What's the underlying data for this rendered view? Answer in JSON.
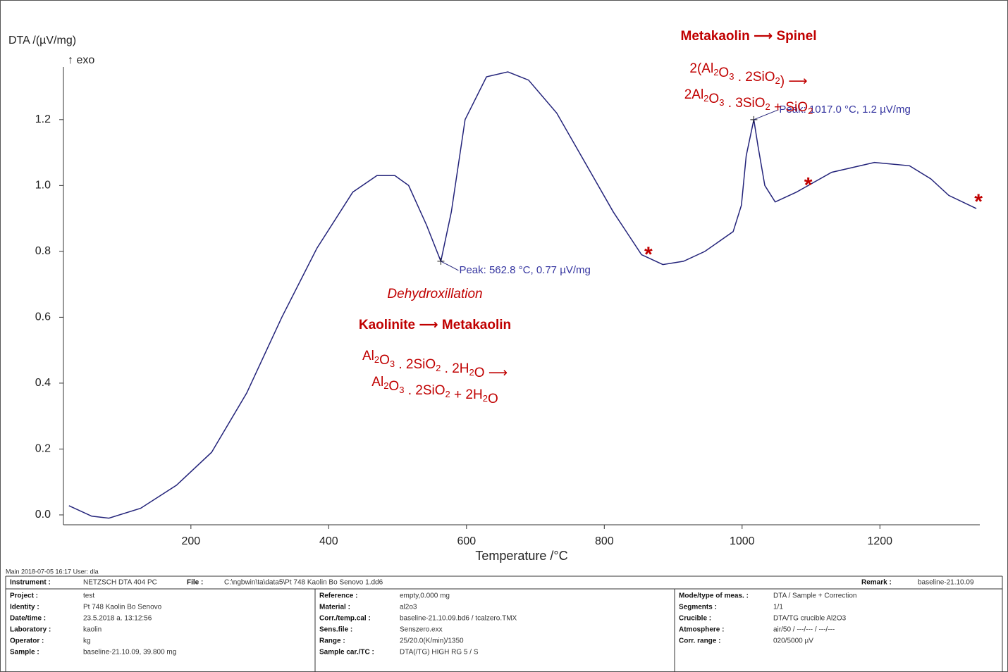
{
  "chart_data": {
    "type": "line",
    "y_label": "DTA /(µV/mg)",
    "y_sublabel": "↑ exo",
    "x_label": "Temperature /°C",
    "color": "#23237a",
    "x": [
      23,
      56,
      81,
      127,
      179,
      230,
      281,
      332,
      383,
      435,
      470,
      496,
      516,
      542,
      562.8,
      578,
      598,
      629,
      660,
      690,
      731,
      772,
      813,
      854,
      885,
      915,
      946,
      987,
      999,
      1006,
      1017,
      1023,
      1033,
      1048,
      1079,
      1130,
      1192,
      1243,
      1274,
      1300,
      1340
    ],
    "values": [
      0.028,
      -0.004,
      -0.01,
      0.02,
      0.09,
      0.19,
      0.37,
      0.6,
      0.81,
      0.98,
      1.03,
      1.03,
      1.0,
      0.88,
      0.77,
      0.92,
      1.2,
      1.33,
      1.345,
      1.32,
      1.22,
      1.07,
      0.92,
      0.79,
      0.76,
      0.77,
      0.8,
      0.86,
      0.94,
      1.09,
      1.2,
      1.12,
      1.0,
      0.95,
      0.98,
      1.04,
      1.07,
      1.06,
      1.02,
      0.97,
      0.93
    ],
    "xlim": [
      15,
      1345
    ],
    "ylim": [
      -0.03,
      1.36
    ],
    "xticks": [
      200,
      400,
      600,
      800,
      1000,
      1200
    ],
    "yticks": [
      {
        "value": 0,
        "label": "0.0"
      },
      {
        "value": 0.2,
        "label": "0.2"
      },
      {
        "value": 0.4,
        "label": "0.4"
      },
      {
        "value": 0.6,
        "label": "0.6"
      },
      {
        "value": 0.8,
        "label": "0.8"
      },
      {
        "value": 1.0,
        "label": "1.0"
      },
      {
        "value": 1.2,
        "label": "1.2"
      }
    ],
    "peaks": [
      {
        "x": 562.8,
        "y": 0.77,
        "label": "Peak: 562.8 °C, 0.77 µV/mg"
      },
      {
        "x": 1017.0,
        "y": 1.2,
        "label": "Peak: 1017.0 °C, 1.2 µV/mg"
      }
    ],
    "highlights": [
      {
        "x": 864,
        "y": 0.8,
        "label": "*"
      },
      {
        "x": 1096,
        "y": 1.01,
        "label": "*"
      },
      {
        "x": 1343,
        "y": 0.96,
        "label": "*"
      }
    ],
    "annotations": [
      {
        "text": "Metakaolin ⟶ Spinel",
        "style": "bold"
      },
      {
        "text": "2(Al2O3 . 2SiO2) ⟶",
        "style": "formula"
      },
      {
        "text": "2Al2O3 . 3SiO2 + SiO2",
        "style": "formula"
      },
      {
        "text": "Dehydroxillation",
        "style": "italic"
      },
      {
        "text": "Kaolinite ⟶ Metakaolin",
        "style": "bold"
      },
      {
        "text": "Al2O3 . 2SiO2 . 2H2O ⟶",
        "style": "formula"
      },
      {
        "text": "Al2O3 . 2SiO2 + 2H2O",
        "style": "formula"
      }
    ]
  },
  "footer": {
    "main": "Main   2018-07-05 16:17    User: dla",
    "header": [
      [
        "Instrument :",
        "NETZSCH DTA 404 PC"
      ],
      [
        "File :",
        "C:\\ngbwin\\ta\\data5\\Pt 748 Kaolin Bo Senovo 1.dd6"
      ],
      [
        "Remark :",
        "baseline-21.10.09"
      ]
    ],
    "columns": [
      [
        [
          "Project :",
          "test"
        ],
        [
          "Identity :",
          "Pt 748 Kaolin Bo Senovo"
        ],
        [
          "Date/time :",
          "23.5.2018 a. 13:12:56"
        ],
        [
          "Laboratory :",
          "kaolin"
        ],
        [
          "Operator :",
          "kg"
        ],
        [
          "Sample :",
          "baseline-21.10.09, 39.800 mg"
        ]
      ],
      [
        [
          "Reference :",
          "empty,0.000 mg"
        ],
        [
          "Material :",
          "al2o3"
        ],
        [
          "Corr./temp.cal :",
          "baseline-21.10.09.bd6 / tcalzero.TMX"
        ],
        [
          "Sens.file :",
          "Senszero.exx"
        ],
        [
          "Range :",
          "25/20.0(K/min)/1350"
        ],
        [
          "Sample car./TC :",
          "DTA(/TG) HIGH RG 5 / S"
        ]
      ],
      [
        [
          "Mode/type of meas. :",
          "DTA / Sample + Correction"
        ],
        [
          "Segments :",
          "1/1"
        ],
        [
          "Crucible :",
          "DTA/TG crucible Al2O3"
        ],
        [
          "Atmosphere :",
          "air/50 / ---/--- / ---/---"
        ],
        [
          "Corr. range :",
          "020/5000 µV"
        ]
      ]
    ]
  }
}
